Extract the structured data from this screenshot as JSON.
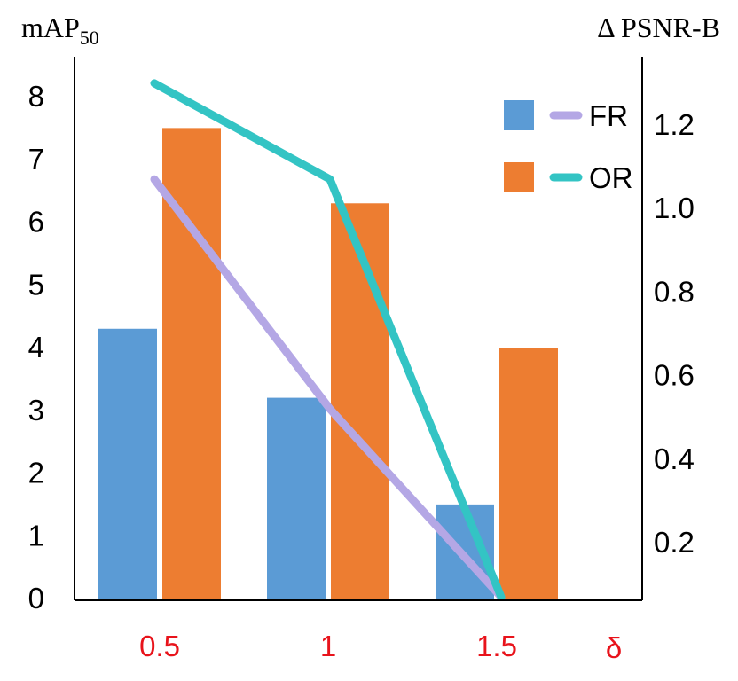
{
  "chart_data": {
    "type": "bar+line",
    "categories": [
      "0.5",
      "1",
      "1.5"
    ],
    "x_symbol": "δ",
    "y_left": {
      "label_main": "mAP",
      "label_sub": "50",
      "ticks": [
        "0",
        "1",
        "2",
        "3",
        "4",
        "5",
        "6",
        "7",
        "8"
      ],
      "ylim": [
        0,
        8.8
      ]
    },
    "y_right": {
      "label": "Δ PSNR-B",
      "ticks": [
        "0.2",
        "0.4",
        "0.6",
        "0.8",
        "1.0",
        "1.2"
      ],
      "ylim": [
        0.07,
        1.38
      ]
    },
    "bars": [
      {
        "name": "FR",
        "color": "#5b9bd5",
        "values": [
          4.3,
          3.2,
          1.5
        ]
      },
      {
        "name": "OR",
        "color": "#ed7d31",
        "values": [
          7.5,
          6.3,
          4.0
        ]
      }
    ],
    "lines": [
      {
        "name": "FR",
        "color": "#b4a7e5",
        "axis": "right",
        "values": [
          1.07,
          0.52,
          0.07
        ]
      },
      {
        "name": "OR",
        "color": "#33c4c4",
        "axis": "right",
        "values": [
          1.3,
          1.07,
          0.07
        ]
      }
    ],
    "legend": [
      {
        "label": "FR",
        "bar_color": "#5b9bd5",
        "line_color": "#b4a7e5"
      },
      {
        "label": "OR",
        "bar_color": "#ed7d31",
        "line_color": "#33c4c4"
      }
    ],
    "legend_position": "top-right",
    "grid": false
  }
}
